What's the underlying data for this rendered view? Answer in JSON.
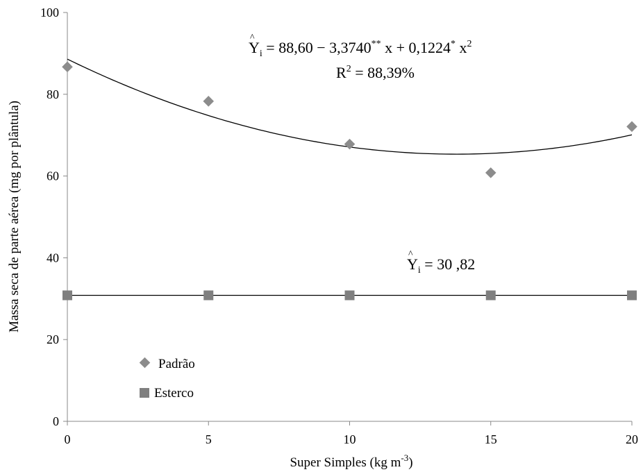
{
  "chart_data": {
    "type": "scatter",
    "xlabel": "Super Simples (kg m",
    "xlabel_sup": "-3",
    "xlabel_end": ")",
    "ylabel": "Massa seca de parte aérea (mg por plântula)",
    "xlim": [
      0,
      20
    ],
    "ylim": [
      0,
      100
    ],
    "x_ticks": [
      0,
      5,
      10,
      15,
      20
    ],
    "y_ticks": [
      0,
      20,
      40,
      60,
      80,
      100
    ],
    "grid": false,
    "legend_position": "bottom-left",
    "series": [
      {
        "name": "Padrão",
        "marker": "diamond",
        "color": "#8c8c8c",
        "x": [
          0,
          5,
          10,
          15,
          20
        ],
        "y": [
          86.7,
          78.3,
          67.8,
          60.8,
          72.1
        ],
        "fit": {
          "type": "quadratic",
          "coefficients": [
            88.6,
            -3.374,
            0.1224
          ],
          "equation": {
            "yhat": "Y",
            "sub": "i",
            "body_a": " = 88,60 − 3,3740",
            "sup_a": "**",
            "body_b": " x + 0,1224",
            "sup_b": "*",
            "body_c": " x",
            "sup_c": "2"
          },
          "r2": {
            "label": "R",
            "sup": "2",
            "value": " = 88,39%"
          }
        }
      },
      {
        "name": "Esterco",
        "marker": "square",
        "color": "#7f7f7f",
        "x": [
          0,
          5,
          10,
          15,
          20
        ],
        "y": [
          30.82,
          30.82,
          30.82,
          30.82,
          30.82
        ],
        "fit": {
          "type": "constant",
          "value": 30.82,
          "equation": {
            "yhat": "Y",
            "sub": "i",
            "body": " =  30 ,82"
          }
        }
      }
    ]
  }
}
